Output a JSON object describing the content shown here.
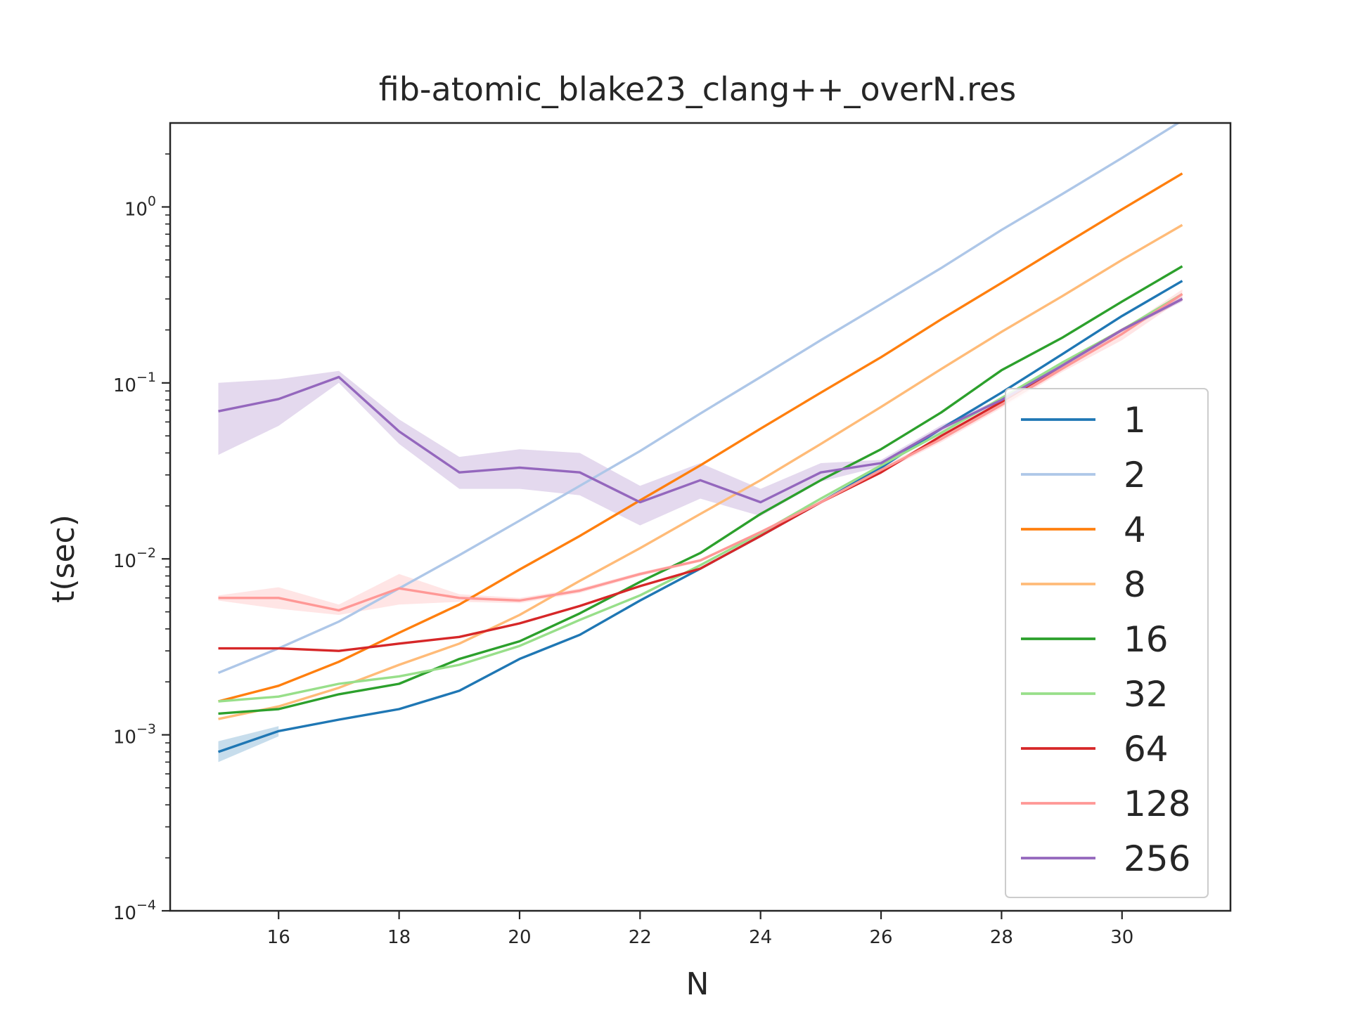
{
  "chart_data": {
    "type": "line",
    "title": "fib-atomic_blake23_clang++_overN.res",
    "xlabel": "N",
    "ylabel": "t(sec)",
    "yscale": "log",
    "xlim": [
      14.2,
      31.8
    ],
    "ylim": [
      0.0001,
      3.0
    ],
    "x_ticks": [
      16,
      18,
      20,
      22,
      24,
      26,
      28,
      30
    ],
    "y_ticks": [
      {
        "value": 0.0001,
        "base": "10",
        "exp": "−4"
      },
      {
        "value": 0.001,
        "base": "10",
        "exp": "−3"
      },
      {
        "value": 0.01,
        "base": "10",
        "exp": "−2"
      },
      {
        "value": 0.1,
        "base": "10",
        "exp": "−1"
      },
      {
        "value": 1,
        "base": "10",
        "exp": "0"
      }
    ],
    "grid": false,
    "legend_position": "lower right",
    "x": [
      15,
      16,
      17,
      18,
      19,
      20,
      21,
      22,
      23,
      24,
      25,
      26,
      27,
      28,
      29,
      30,
      31
    ],
    "series": [
      {
        "name": "1",
        "color": "#1f77b4",
        "values": [
          0.0008,
          0.00105,
          0.00122,
          0.0014,
          0.00178,
          0.0027,
          0.0037,
          0.0058,
          0.0088,
          0.0135,
          0.021,
          0.033,
          0.055,
          0.088,
          0.145,
          0.24,
          0.38
        ],
        "band_low": [
          0.0007,
          0.00098,
          null,
          null,
          null,
          null,
          null,
          null,
          null,
          null,
          null,
          null,
          null,
          null,
          null,
          null,
          null
        ],
        "band_high": [
          0.00092,
          0.00112,
          null,
          null,
          null,
          null,
          null,
          null,
          null,
          null,
          null,
          null,
          null,
          null,
          null,
          null,
          null
        ]
      },
      {
        "name": "2",
        "color": "#aec7e8",
        "values": [
          0.00225,
          0.0031,
          0.0044,
          0.0068,
          0.0105,
          0.0165,
          0.026,
          0.041,
          0.067,
          0.108,
          0.175,
          0.28,
          0.45,
          0.74,
          1.18,
          1.9,
          3.1
        ]
      },
      {
        "name": "4",
        "color": "#ff7f0e",
        "values": [
          0.00155,
          0.0019,
          0.0026,
          0.0038,
          0.0055,
          0.0087,
          0.0135,
          0.0215,
          0.034,
          0.055,
          0.088,
          0.14,
          0.23,
          0.37,
          0.6,
          0.97,
          1.55
        ]
      },
      {
        "name": "8",
        "color": "#ffbb78",
        "values": [
          0.00123,
          0.00145,
          0.00185,
          0.0025,
          0.0033,
          0.0048,
          0.0075,
          0.0115,
          0.018,
          0.028,
          0.045,
          0.073,
          0.12,
          0.195,
          0.31,
          0.5,
          0.79
        ]
      },
      {
        "name": "16",
        "color": "#2ca02c",
        "values": [
          0.00132,
          0.0014,
          0.0017,
          0.00195,
          0.0027,
          0.0034,
          0.0049,
          0.0074,
          0.0108,
          0.018,
          0.028,
          0.042,
          0.068,
          0.118,
          0.18,
          0.29,
          0.46
        ]
      },
      {
        "name": "32",
        "color": "#98df8a",
        "values": [
          0.00155,
          0.00165,
          0.00195,
          0.00215,
          0.0025,
          0.0032,
          0.0045,
          0.0062,
          0.0092,
          0.014,
          0.022,
          0.034,
          0.052,
          0.082,
          0.13,
          0.2,
          0.32
        ]
      },
      {
        "name": "64",
        "color": "#d62728",
        "values": [
          0.0031,
          0.0031,
          0.003,
          0.0033,
          0.0036,
          0.0043,
          0.0054,
          0.007,
          0.0088,
          0.0135,
          0.021,
          0.031,
          0.05,
          0.078,
          0.125,
          0.2,
          0.3
        ]
      },
      {
        "name": "128",
        "color": "#ff9896",
        "values": [
          0.006,
          0.006,
          0.0051,
          0.0068,
          0.006,
          0.0058,
          0.0066,
          0.0082,
          0.0098,
          0.0142,
          0.021,
          0.032,
          0.048,
          0.075,
          0.12,
          0.19,
          0.32
        ],
        "band_low": [
          0.0058,
          0.0052,
          0.0048,
          0.0055,
          0.0057,
          0.0056,
          0.0064,
          0.008,
          0.0096,
          0.014,
          0.0205,
          0.031,
          0.046,
          0.072,
          0.115,
          0.175,
          0.3
        ],
        "band_high": [
          0.0062,
          0.0069,
          0.0055,
          0.0082,
          0.0063,
          0.006,
          0.0068,
          0.0084,
          0.01,
          0.0144,
          0.0215,
          0.033,
          0.05,
          0.078,
          0.125,
          0.2,
          0.34
        ]
      },
      {
        "name": "256",
        "color": "#9467bd",
        "values": [
          0.069,
          0.081,
          0.108,
          0.053,
          0.031,
          0.033,
          0.031,
          0.021,
          0.028,
          0.021,
          0.031,
          0.035,
          0.055,
          0.08,
          0.125,
          0.2,
          0.3
        ],
        "band_low": [
          0.039,
          0.057,
          0.1,
          0.045,
          0.025,
          0.025,
          0.023,
          0.0155,
          0.022,
          0.0175,
          0.0275,
          0.0335,
          0.0525,
          0.078,
          0.12,
          0.195,
          0.29
        ],
        "band_high": [
          0.1,
          0.105,
          0.117,
          0.062,
          0.038,
          0.042,
          0.04,
          0.026,
          0.035,
          0.025,
          0.035,
          0.0365,
          0.0575,
          0.082,
          0.13,
          0.205,
          0.31
        ]
      }
    ]
  }
}
